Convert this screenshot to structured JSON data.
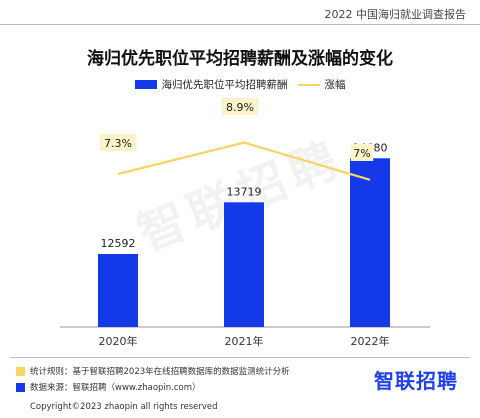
{
  "header": {
    "report_title": "2022 中国海归就业调查报告"
  },
  "watermark": "智联招聘",
  "footer": {
    "note1": "统计规则：基于智联招聘2023年在线招聘数据库的数据监测统计分析",
    "note2": "数据来源：智联招聘（www.zhaopin.com）",
    "brand": "智联招聘",
    "copyright": "Copyright©2023 zhaopin all rights reserved",
    "note1_color": "#f6d565",
    "note2_color": "#1439e8"
  },
  "colors": {
    "bar": "#1439e8",
    "line": "#f6d565",
    "label_bg": "#fdf3c9"
  },
  "chart_data": {
    "type": "bar",
    "title": "海归优先职位平均招聘薪酬及涨幅的变化",
    "categories": [
      "2020年",
      "2021年",
      "2022年"
    ],
    "series": [
      {
        "name": "海归优先职位平均招聘薪酬",
        "type": "bar",
        "values": [
          12592,
          13719,
          14680
        ]
      },
      {
        "name": "涨幅",
        "type": "line",
        "values": [
          7.3,
          8.9,
          7
        ],
        "labels": [
          "7.3%",
          "8.9%",
          "7%"
        ]
      }
    ],
    "legend": "top-center",
    "grid": false,
    "ylim": [
      11000,
      15100
    ]
  }
}
